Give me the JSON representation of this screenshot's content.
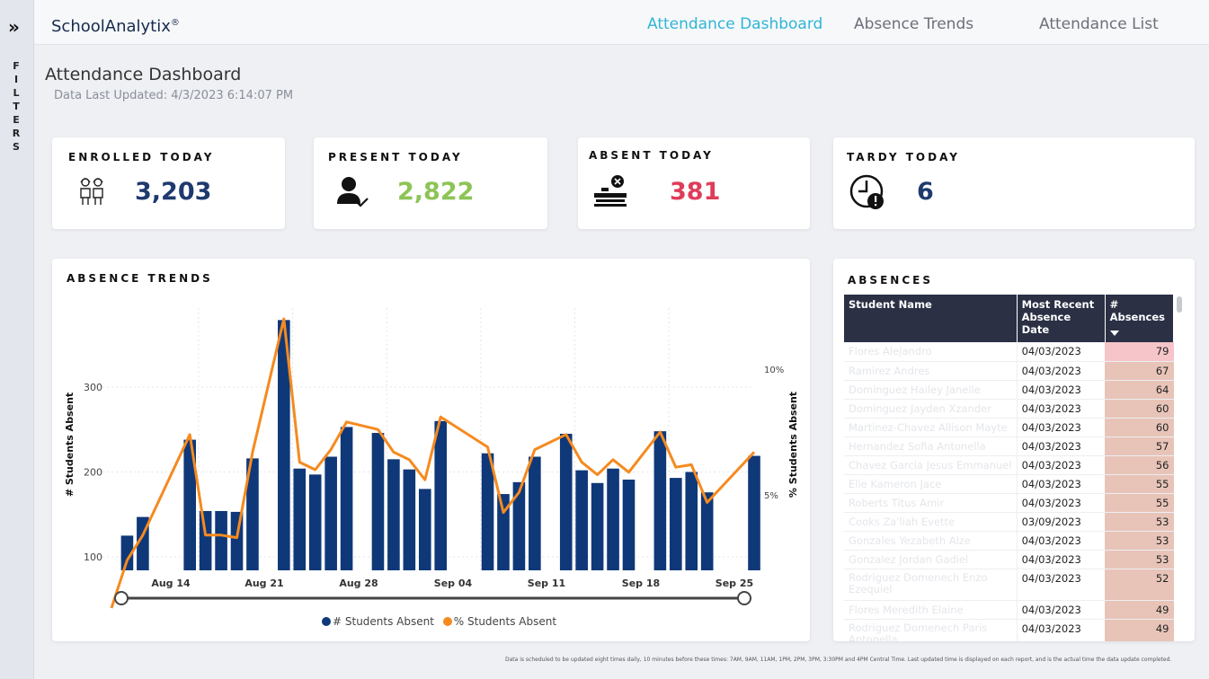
{
  "filters": {
    "label": "FILTERS"
  },
  "header": {
    "brand": "SchoolAnalytix",
    "brand_mark": "®",
    "tabs": [
      {
        "label": "Attendance Dashboard",
        "active": true
      },
      {
        "label": "Absence Trends",
        "active": false
      },
      {
        "label": "Attendance List",
        "active": false
      }
    ]
  },
  "page": {
    "title": "Attendance Dashboard",
    "updated": "Data Last Updated: 4/3/2023 6:14:07 PM"
  },
  "kpis": {
    "enrolled": {
      "label": "ENROLLED TODAY",
      "value": "3,203",
      "color": "#1e3a6e",
      "icon": "students-icon"
    },
    "present": {
      "label": "PRESENT TODAY",
      "value": "2,822",
      "color": "#8dc456",
      "icon": "student-check-icon"
    },
    "absent": {
      "label": "ABSENT TODAY",
      "value": "381",
      "color": "#e03c5a",
      "icon": "empty-desk-icon"
    },
    "tardy": {
      "label": "TARDY TODAY",
      "value": "6",
      "color": "#1e3a6e",
      "icon": "clock-alert-icon"
    }
  },
  "trends": {
    "title": "ABSENCE TRENDS",
    "legend": [
      "# Students Absent",
      "% Students Absent"
    ]
  },
  "chart_data": {
    "type": "bar",
    "bar_color": "#0f3878",
    "line_color": "#f58a1f",
    "xlabel": "",
    "ylabel": "# Students Absent",
    "y2label": "% Students Absent",
    "ylim": [
      80,
      380
    ],
    "y_ticks": [
      100,
      200,
      300
    ],
    "y2_ticks": [
      "5%",
      "10%"
    ],
    "x_ticks": [
      "Aug 14",
      "Aug 21",
      "Aug 28",
      "Sep 04",
      "Sep 11",
      "Sep 18",
      "Sep 25"
    ],
    "series": [
      {
        "name": "# Students Absent",
        "type": "bar",
        "values": [
          null,
          125,
          147,
          null,
          null,
          238,
          154,
          154,
          153,
          216,
          null,
          379,
          204,
          197,
          218,
          253,
          null,
          246,
          215,
          203,
          180,
          260,
          null,
          null,
          222,
          174,
          188,
          218,
          null,
          245,
          202,
          187,
          204,
          191,
          null,
          248,
          193,
          200,
          176,
          null,
          null,
          219
        ]
      },
      {
        "name": "% Students Absent",
        "type": "line",
        "values": [
          0.5,
          2.4,
          3.4,
          null,
          null,
          7.4,
          3.4,
          3.4,
          3.3,
          6.7,
          null,
          12.0,
          6.3,
          6.0,
          6.8,
          7.9,
          null,
          7.6,
          6.7,
          6.4,
          5.6,
          8.1,
          null,
          null,
          6.9,
          4.3,
          5.1,
          6.8,
          null,
          7.4,
          6.3,
          5.8,
          6.4,
          5.9,
          null,
          7.5,
          6.1,
          6.2,
          4.7,
          null,
          null,
          6.7
        ]
      }
    ]
  },
  "absences": {
    "title": "ABSENCES",
    "columns": [
      "Student Name",
      "Most Recent Absence Date",
      "# Absences"
    ],
    "rows": [
      {
        "name": "Flores Alejandro",
        "date": "04/03/2023",
        "count": "79"
      },
      {
        "name": "Ramirez Andres",
        "date": "04/03/2023",
        "count": "67"
      },
      {
        "name": "Dominguez Hailey Janelle",
        "date": "04/03/2023",
        "count": "64"
      },
      {
        "name": "Dominguez Jayden Xzander",
        "date": "04/03/2023",
        "count": "60"
      },
      {
        "name": "Martinez-Chavez Allison Mayte",
        "date": "04/03/2023",
        "count": "60"
      },
      {
        "name": "Hernandez Sofia Antonella",
        "date": "04/03/2023",
        "count": "57"
      },
      {
        "name": "Chavez Garcia Jesus Emmanuel",
        "date": "04/03/2023",
        "count": "56"
      },
      {
        "name": "Elie Kameron Jace",
        "date": "04/03/2023",
        "count": "55"
      },
      {
        "name": "Roberts Titus Amir",
        "date": "04/03/2023",
        "count": "55"
      },
      {
        "name": "Cooks Za'liah Evette",
        "date": "03/09/2023",
        "count": "53"
      },
      {
        "name": "Gonzales Yezabeth Alze",
        "date": "04/03/2023",
        "count": "53"
      },
      {
        "name": "Gonzalez Jordan Gadiel",
        "date": "04/03/2023",
        "count": "53"
      },
      {
        "name": "Rodriguez Domenech Enzo Ezequiel",
        "date": "04/03/2023",
        "count": "52"
      },
      {
        "name": "Flores Meredith Elaine",
        "date": "04/03/2023",
        "count": "49"
      },
      {
        "name": "Rodriguez Domenech Paris Antonella",
        "date": "04/03/2023",
        "count": "49"
      }
    ]
  },
  "footnote": "Data is scheduled to be updated eight times daily, 10 minutes before these times: 7AM, 9AM, 11AM, 1PM, 2PM, 3PM, 3:30PM and 4PM Central Time. Last updated time is displayed on each report, and is the actual time the data update completed."
}
